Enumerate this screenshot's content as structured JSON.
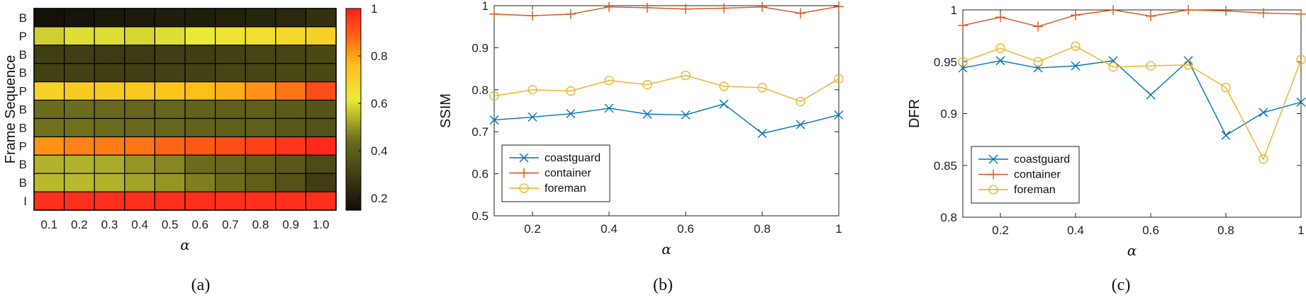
{
  "chart_data": [
    {
      "type": "heatmap",
      "panel": "(a)",
      "xlabel": "α",
      "ylabel": "Frame Sequence",
      "x_categories": [
        "0.1",
        "0.2",
        "0.3",
        "0.4",
        "0.5",
        "0.6",
        "0.7",
        "0.8",
        "0.9",
        "1.0"
      ],
      "y_categories": [
        "B",
        "P",
        "B",
        "B",
        "P",
        "B",
        "B",
        "P",
        "B",
        "B",
        "I"
      ],
      "values": [
        [
          0.16,
          0.17,
          0.18,
          0.19,
          0.2,
          0.2,
          0.21,
          0.22,
          0.23,
          0.26
        ],
        [
          0.58,
          0.6,
          0.6,
          0.59,
          0.6,
          0.62,
          0.64,
          0.66,
          0.68,
          0.7
        ],
        [
          0.3,
          0.3,
          0.29,
          0.29,
          0.3,
          0.3,
          0.31,
          0.32,
          0.32,
          0.33
        ],
        [
          0.31,
          0.31,
          0.3,
          0.3,
          0.31,
          0.31,
          0.32,
          0.32,
          0.33,
          0.33
        ],
        [
          0.7,
          0.72,
          0.72,
          0.73,
          0.74,
          0.76,
          0.78,
          0.82,
          0.86,
          0.92
        ],
        [
          0.44,
          0.44,
          0.43,
          0.42,
          0.42,
          0.41,
          0.4,
          0.4,
          0.39,
          0.37
        ],
        [
          0.45,
          0.45,
          0.44,
          0.43,
          0.42,
          0.41,
          0.4,
          0.4,
          0.38,
          0.36
        ],
        [
          0.82,
          0.84,
          0.85,
          0.86,
          0.88,
          0.9,
          0.92,
          0.94,
          0.96,
          0.98
        ],
        [
          0.54,
          0.54,
          0.53,
          0.5,
          0.48,
          0.44,
          0.42,
          0.4,
          0.38,
          0.34
        ],
        [
          0.55,
          0.55,
          0.54,
          0.52,
          0.5,
          0.47,
          0.44,
          0.4,
          0.36,
          0.3
        ],
        [
          0.97,
          0.97,
          0.97,
          0.97,
          0.97,
          0.97,
          0.97,
          0.97,
          0.97,
          0.97
        ]
      ],
      "colorbar": {
        "range": [
          0.15,
          1.0
        ],
        "ticks": [
          "0.2",
          "0.4",
          "0.6",
          "0.8",
          "1"
        ]
      }
    },
    {
      "type": "line",
      "panel": "(b)",
      "xlabel": "α",
      "ylabel": "SSIM",
      "xlim": [
        0.1,
        1
      ],
      "ylim": [
        0.5,
        1
      ],
      "xticks": [
        "0.2",
        "0.4",
        "0.6",
        "0.8",
        "1"
      ],
      "yticks": [
        "0.5",
        "0.6",
        "0.7",
        "0.8",
        "0.9",
        "1"
      ],
      "legend": "bottom-left",
      "x": [
        0.1,
        0.2,
        0.3,
        0.4,
        0.5,
        0.6,
        0.7,
        0.8,
        0.9,
        1.0
      ],
      "series": [
        {
          "name": "coastguard",
          "color": "#0072bd",
          "marker": "x",
          "values": [
            0.728,
            0.735,
            0.743,
            0.756,
            0.742,
            0.74,
            0.766,
            0.696,
            0.717,
            0.74
          ]
        },
        {
          "name": "container",
          "color": "#d95319",
          "marker": "+",
          "values": [
            0.98,
            0.976,
            0.98,
            0.997,
            0.995,
            0.992,
            0.994,
            0.997,
            0.982,
            0.998
          ]
        },
        {
          "name": "foreman",
          "color": "#edb120",
          "marker": "o",
          "values": [
            0.785,
            0.8,
            0.797,
            0.822,
            0.812,
            0.834,
            0.808,
            0.805,
            0.772,
            0.826
          ]
        }
      ]
    },
    {
      "type": "line",
      "panel": "(c)",
      "xlabel": "α",
      "ylabel": "DFR",
      "xlim": [
        0.1,
        1
      ],
      "ylim": [
        0.8,
        1
      ],
      "xticks": [
        "0.2",
        "0.4",
        "0.6",
        "0.8",
        "1"
      ],
      "yticks": [
        "0.8",
        "0.85",
        "0.9",
        "0.95",
        "1"
      ],
      "legend": "bottom-left",
      "x": [
        0.1,
        0.2,
        0.3,
        0.4,
        0.5,
        0.6,
        0.7,
        0.8,
        0.9,
        1.0
      ],
      "series": [
        {
          "name": "coastguard",
          "color": "#0072bd",
          "marker": "x",
          "values": [
            0.944,
            0.951,
            0.944,
            0.946,
            0.951,
            0.918,
            0.951,
            0.879,
            0.901,
            0.911
          ]
        },
        {
          "name": "container",
          "color": "#d95319",
          "marker": "+",
          "values": [
            0.985,
            0.993,
            0.984,
            0.995,
            1.0,
            0.994,
            1.0,
            0.999,
            0.997,
            0.996
          ]
        },
        {
          "name": "foreman",
          "color": "#edb120",
          "marker": "o",
          "values": [
            0.95,
            0.963,
            0.95,
            0.965,
            0.945,
            0.946,
            0.947,
            0.925,
            0.856,
            0.952
          ]
        }
      ]
    }
  ],
  "captions": [
    "(a)",
    "(b)",
    "(c)"
  ]
}
